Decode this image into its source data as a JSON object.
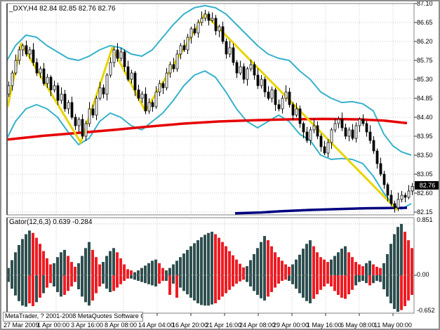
{
  "header": {
    "title_line": "_DXY,H4 82.84 82.85 82.76 82.76",
    "symbol": "_DXY",
    "period": "H4",
    "ohlc_display": [
      "82.84",
      "82.85",
      "82.76",
      "82.76"
    ]
  },
  "footer": {
    "copyright": "MetaTrader, ? 2001-2008 MetaQuotes Software Corp."
  },
  "price_axis": {
    "current": "82.76",
    "labels": [
      87.1,
      86.65,
      86.2,
      85.75,
      85.3,
      84.85,
      84.4,
      83.95,
      83.5,
      83.05,
      82.6,
      82.15
    ]
  },
  "time_axis": {
    "labels": [
      "27 Mar 2009",
      "1 Apr 00:00",
      "3 Apr 16:00",
      "8 Apr 08:00",
      "14 Apr 04:00",
      "16 Apr 20:00",
      "21 Apr 16:00",
      "24 Apr 08:00",
      "29 Apr 00:00",
      "1 May 16:00",
      "6 May 08:00",
      "11 May 00:00"
    ]
  },
  "gator_axis": {
    "top": "0.851",
    "zero": "0.00",
    "bottom": "-0.652"
  },
  "colors": {
    "bollinger": "#35b1cc",
    "zigzag": "#e8d400",
    "ma": "#e60000",
    "navy": "#000080",
    "gator_up": "#2F4F4F",
    "gator_down": "#ee1c23",
    "grid": "#c9c9c9",
    "border": "#808080",
    "candle_up": "#ffffff",
    "candle_down": "#000000",
    "badge_bg": "#000000"
  },
  "chart_data": [
    {
      "type": "candlestick",
      "title": "_DXY,H4 82.84 82.85 82.76 82.76",
      "ylim": [
        82.15,
        87.1
      ],
      "open_first": 84.95,
      "closes": [
        85.15,
        85.45,
        85.75,
        86.0,
        86.1,
        85.9,
        86.0,
        85.7,
        85.45,
        85.55,
        85.2,
        85.35,
        85.05,
        85.15,
        84.8,
        84.95,
        84.6,
        84.75,
        84.4,
        84.2,
        84.35,
        83.95,
        84.25,
        84.6,
        84.45,
        84.85,
        85.1,
        84.95,
        85.4,
        85.7,
        86.0,
        85.8,
        85.95,
        85.6,
        85.3,
        85.45,
        85.05,
        84.85,
        84.95,
        84.55,
        84.75,
        84.65,
        85.0,
        85.2,
        85.1,
        85.45,
        85.65,
        85.55,
        85.9,
        86.1,
        86.0,
        86.3,
        86.5,
        86.4,
        86.65,
        86.75,
        86.85,
        86.7,
        86.75,
        86.45,
        86.55,
        86.2,
        85.9,
        86.05,
        85.7,
        85.45,
        85.6,
        85.3,
        85.55,
        85.65,
        85.4,
        85.15,
        85.3,
        85.0,
        84.85,
        85.05,
        84.7,
        84.6,
        84.85,
        85.0,
        84.7,
        84.45,
        84.6,
        84.25,
        84.05,
        83.85,
        84.1,
        84.2,
        83.95,
        83.7,
        83.55,
        83.8,
        84.1,
        84.25,
        84.35,
        84.15,
        83.95,
        84.1,
        83.9,
        84.2,
        84.35,
        84.25,
        84.05,
        83.85,
        83.6,
        83.3,
        83.05,
        82.8,
        82.55,
        82.35,
        82.25,
        82.45,
        82.55,
        82.5,
        82.65,
        82.76
      ],
      "overlays": {
        "bollinger_upper": [
          [
            8,
            85.75
          ],
          [
            20,
            86.1
          ],
          [
            35,
            86.35
          ],
          [
            50,
            86.3
          ],
          [
            65,
            86.1
          ],
          [
            80,
            85.95
          ],
          [
            95,
            85.8
          ],
          [
            110,
            85.75
          ],
          [
            125,
            85.85
          ],
          [
            140,
            86.0
          ],
          [
            155,
            86.1
          ],
          [
            170,
            86.05
          ],
          [
            185,
            85.9
          ],
          [
            200,
            85.85
          ],
          [
            215,
            86.0
          ],
          [
            230,
            86.3
          ],
          [
            245,
            86.6
          ],
          [
            260,
            86.85
          ],
          [
            275,
            87.0
          ],
          [
            290,
            87.05
          ],
          [
            305,
            87.0
          ],
          [
            320,
            86.85
          ],
          [
            335,
            86.6
          ],
          [
            350,
            86.35
          ],
          [
            365,
            86.1
          ],
          [
            380,
            85.9
          ],
          [
            395,
            85.8
          ],
          [
            410,
            85.75
          ],
          [
            425,
            85.5
          ],
          [
            440,
            85.3
          ],
          [
            455,
            85.0
          ],
          [
            470,
            84.85
          ],
          [
            485,
            84.75
          ],
          [
            500,
            84.77
          ],
          [
            515,
            84.72
          ],
          [
            530,
            84.55
          ],
          [
            545,
            84.0
          ],
          [
            558,
            83.72
          ],
          [
            570,
            83.58
          ],
          [
            584,
            83.5
          ]
        ],
        "bollinger_lower": [
          [
            8,
            83.9
          ],
          [
            20,
            84.3
          ],
          [
            35,
            84.6
          ],
          [
            50,
            84.7
          ],
          [
            65,
            84.6
          ],
          [
            80,
            84.4
          ],
          [
            95,
            84.05
          ],
          [
            110,
            83.75
          ],
          [
            125,
            83.9
          ],
          [
            140,
            84.3
          ],
          [
            155,
            84.5
          ],
          [
            170,
            84.4
          ],
          [
            185,
            84.2
          ],
          [
            200,
            84.1
          ],
          [
            215,
            84.3
          ],
          [
            230,
            84.5
          ],
          [
            245,
            84.8
          ],
          [
            260,
            85.15
          ],
          [
            275,
            85.4
          ],
          [
            290,
            85.5
          ],
          [
            305,
            85.35
          ],
          [
            320,
            85.0
          ],
          [
            335,
            84.6
          ],
          [
            350,
            84.3
          ],
          [
            365,
            84.15
          ],
          [
            380,
            84.3
          ],
          [
            395,
            84.45
          ],
          [
            410,
            84.3
          ],
          [
            425,
            84.0
          ],
          [
            440,
            83.85
          ],
          [
            455,
            83.5
          ],
          [
            470,
            83.4
          ],
          [
            485,
            83.42
          ],
          [
            500,
            83.4
          ],
          [
            515,
            83.3
          ],
          [
            530,
            83.0
          ],
          [
            545,
            82.6
          ],
          [
            558,
            82.32
          ],
          [
            570,
            82.22
          ],
          [
            584,
            82.35
          ]
        ],
        "zigzag": [
          [
            9,
            84.65
          ],
          [
            28,
            86.15
          ],
          [
            113,
            83.8
          ],
          [
            158,
            86.05
          ],
          [
            205,
            84.55
          ],
          [
            290,
            86.85
          ],
          [
            564,
            82.2
          ]
        ],
        "ma_red": [
          [
            8,
            83.87
          ],
          [
            60,
            83.96
          ],
          [
            110,
            84.03
          ],
          [
            160,
            84.1
          ],
          [
            210,
            84.18
          ],
          [
            260,
            84.25
          ],
          [
            310,
            84.3
          ],
          [
            360,
            84.33
          ],
          [
            410,
            84.35
          ],
          [
            460,
            84.36
          ],
          [
            510,
            84.35
          ],
          [
            545,
            84.32
          ],
          [
            578,
            84.26
          ]
        ],
        "navy_line": [
          [
            333,
            82.12
          ],
          [
            370,
            82.14
          ],
          [
            400,
            82.17
          ],
          [
            440,
            82.2
          ],
          [
            480,
            82.22
          ],
          [
            520,
            82.24
          ],
          [
            578,
            82.25
          ]
        ]
      }
    },
    {
      "type": "bar",
      "name": "Gator",
      "label_line": "Gator(12,6,3) 0.639 -0.284",
      "params": "(12,6,3)",
      "values_display": [
        "0.639",
        "-0.284"
      ],
      "ylim": [
        -0.652,
        0.851
      ],
      "upper_values": [
        0.12,
        0.25,
        0.38,
        0.5,
        0.6,
        0.68,
        0.74,
        0.7,
        0.62,
        0.52,
        0.4,
        0.28,
        0.18,
        0.2,
        0.3,
        0.38,
        0.42,
        0.32,
        0.22,
        0.14,
        0.2,
        0.32,
        0.45,
        0.55,
        0.42,
        0.3,
        0.18,
        0.22,
        0.32,
        0.4,
        0.45,
        0.38,
        0.28,
        0.18,
        0.1,
        0.08,
        0.05,
        0.08,
        0.12,
        0.16,
        0.2,
        0.24,
        0.26,
        0.2,
        0.12,
        0.08,
        0.12,
        0.18,
        0.24,
        0.3,
        0.36,
        0.42,
        0.48,
        0.53,
        0.58,
        0.63,
        0.67,
        0.7,
        0.72,
        0.68,
        0.62,
        0.55,
        0.48,
        0.4,
        0.33,
        0.26,
        0.19,
        0.13,
        0.15,
        0.25,
        0.35,
        0.45,
        0.55,
        0.65,
        0.58,
        0.48,
        0.38,
        0.3,
        0.24,
        0.18,
        0.14,
        0.18,
        0.26,
        0.34,
        0.44,
        0.52,
        0.58,
        0.48,
        0.38,
        0.3,
        0.26,
        0.22,
        0.26,
        0.32,
        0.38,
        0.44,
        0.48,
        0.38,
        0.3,
        0.22,
        0.18,
        0.15,
        0.2,
        0.24,
        0.18,
        0.14,
        0.12,
        0.2,
        0.35,
        0.52,
        0.68,
        0.8,
        0.85,
        0.72,
        0.58,
        0.45
      ],
      "upper_colors": "gggggggrrrrrrggggrrrggggrrrggggrrrrrgggggggrrggggggggggggggrrrrrrrrrggggggrrrrrrrggggggrrrrrgggggrrrrrggrrrggggggrrr",
      "lower_values": [
        -0.12,
        -0.24,
        -0.36,
        -0.46,
        -0.54,
        -0.56,
        -0.5,
        -0.55,
        -0.48,
        -0.4,
        -0.32,
        -0.22,
        -0.14,
        -0.2,
        -0.3,
        -0.38,
        -0.35,
        -0.28,
        -0.2,
        -0.12,
        -0.25,
        -0.38,
        -0.48,
        -0.54,
        -0.45,
        -0.32,
        -0.2,
        -0.15,
        -0.24,
        -0.3,
        -0.28,
        -0.22,
        -0.16,
        -0.1,
        -0.06,
        -0.06,
        -0.08,
        -0.1,
        -0.12,
        -0.14,
        -0.16,
        -0.18,
        -0.2,
        -0.15,
        -0.1,
        -0.1,
        -0.35,
        -0.15,
        -0.4,
        -0.22,
        -0.28,
        -0.34,
        -0.4,
        -0.45,
        -0.5,
        -0.53,
        -0.54,
        -0.54,
        -0.52,
        -0.5,
        -0.44,
        -0.38,
        -0.32,
        -0.26,
        -0.2,
        -0.15,
        -0.11,
        -0.08,
        -0.12,
        -0.2,
        -0.28,
        -0.35,
        -0.41,
        -0.45,
        -0.38,
        -0.3,
        -0.22,
        -0.15,
        -0.1,
        -0.08,
        -0.1,
        -0.16,
        -0.24,
        -0.32,
        -0.4,
        -0.46,
        -0.5,
        -0.42,
        -0.34,
        -0.26,
        -0.2,
        -0.15,
        -0.2,
        -0.28,
        -0.35,
        -0.4,
        -0.42,
        -0.34,
        -0.26,
        -0.18,
        -0.12,
        -0.1,
        -0.14,
        -0.18,
        -0.14,
        -0.1,
        -0.12,
        -0.25,
        -0.38,
        -0.5,
        -0.6,
        -0.65,
        -0.62,
        -0.55,
        -0.45,
        -0.35
      ],
      "lower_colors": "ggggggrrgrgrrgggrrrrggggrrrgggrrrrrggggggggrrgrgrggggggggggrrrrrrrrrggggggrrrrrrgggggggrrrrrrrrrrrrggggrggggggggrrrr"
    }
  ]
}
